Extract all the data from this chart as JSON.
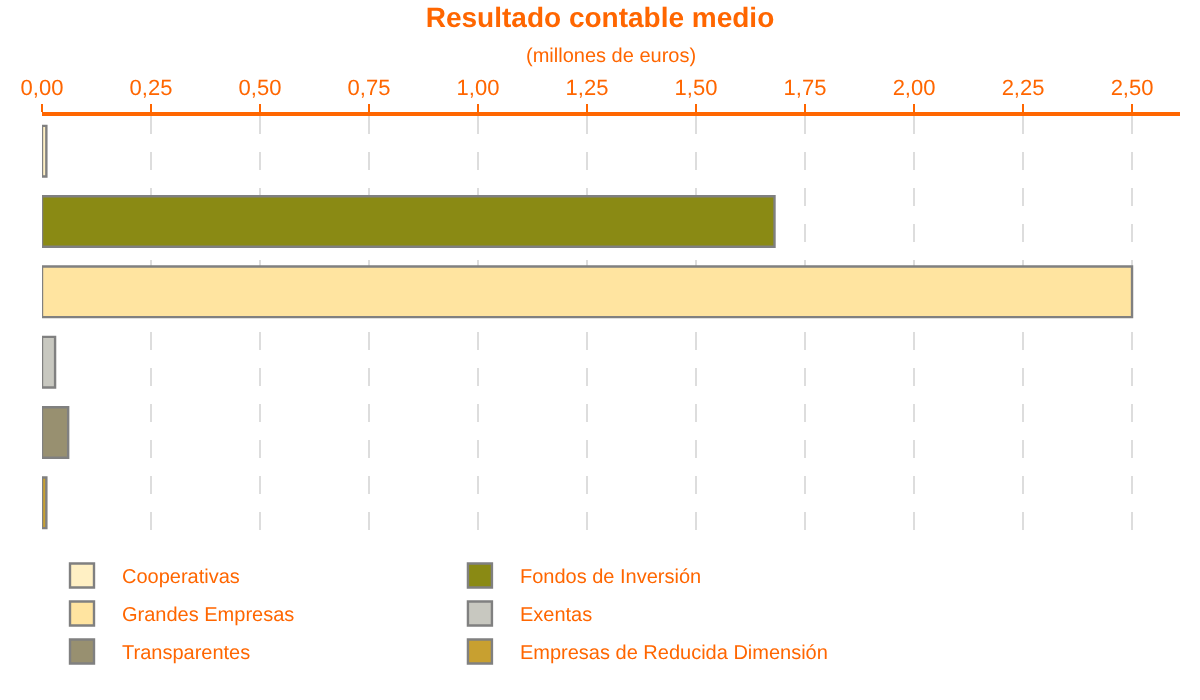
{
  "chart_data": {
    "type": "bar",
    "orientation": "horizontal",
    "title": "Resultado contable medio",
    "subtitle": "(millones de euros)",
    "categories": [
      null,
      null,
      null,
      null,
      null,
      null
    ],
    "series": [
      {
        "name": "Cooperativas",
        "color": "#fff0c4",
        "values": [
          0.01,
          null,
          null,
          null,
          null,
          null
        ]
      },
      {
        "name": "Fondos de Inversión",
        "color": "#8a8a14",
        "values": [
          null,
          1.68,
          null,
          null,
          null,
          null
        ]
      },
      {
        "name": "Grandes Empresas",
        "color": "#ffe4a0",
        "values": [
          null,
          null,
          2.5,
          null,
          null,
          null
        ]
      },
      {
        "name": "Exentas",
        "color": "#c8c8c0",
        "values": [
          null,
          null,
          null,
          0.03,
          null,
          null
        ]
      },
      {
        "name": "Transparentes",
        "color": "#989070",
        "values": [
          null,
          null,
          null,
          null,
          0.06,
          null
        ]
      },
      {
        "name": "Empresas de Reducida Dimensión",
        "color": "#c8a030",
        "values": [
          null,
          null,
          null,
          null,
          null,
          0.01
        ]
      }
    ],
    "xlim": [
      0,
      2.61
    ],
    "xticks": [
      {
        "value": 0,
        "label": "0,00"
      },
      {
        "value": 0.25,
        "label": "0,25"
      },
      {
        "value": 0.5,
        "label": "0,50"
      },
      {
        "value": 0.75,
        "label": "0,75"
      },
      {
        "value": 1,
        "label": "1,00"
      },
      {
        "value": 1.25,
        "label": "1,25"
      },
      {
        "value": 1.5,
        "label": "1,50"
      },
      {
        "value": 1.75,
        "label": "1,75"
      },
      {
        "value": 2,
        "label": "2,00"
      },
      {
        "value": 2.25,
        "label": "2,25"
      },
      {
        "value": 2.5,
        "label": "2,50"
      }
    ],
    "grid": "x",
    "legend": "bottom"
  }
}
